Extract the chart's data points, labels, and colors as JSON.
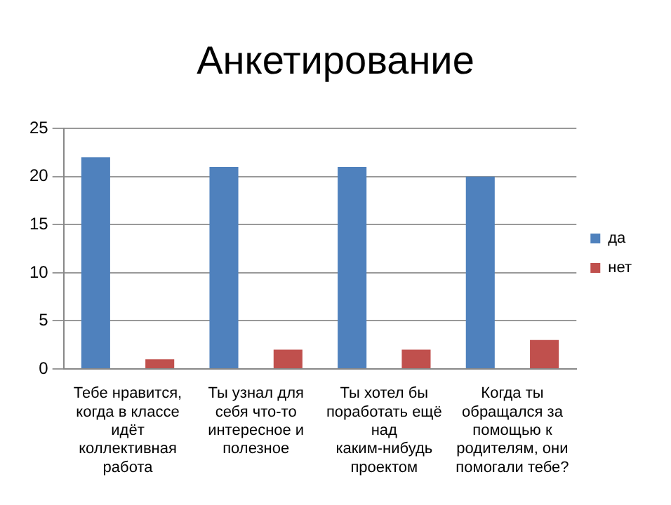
{
  "chart_data": {
    "type": "bar",
    "title": "Анкетирование",
    "categories": [
      "Тебе нравится, когда в классе идёт коллективная работа",
      "Ты узнал для себя что-то интересное и полезное",
      "Ты хотел бы поработать ещё над каким-нибудь проектом",
      "Когда ты обращался за помощью к родителям, они помогали тебе?"
    ],
    "series": [
      {
        "name": "да",
        "color": "#4f81bd",
        "values": [
          22,
          21,
          21,
          20
        ]
      },
      {
        "name": "нет",
        "color": "#c0504d",
        "values": [
          1,
          2,
          2,
          3
        ]
      }
    ],
    "ylim": [
      0,
      25
    ],
    "yticks": [
      0,
      5,
      10,
      15,
      20,
      25
    ],
    "grid": "y",
    "legend": "right"
  }
}
